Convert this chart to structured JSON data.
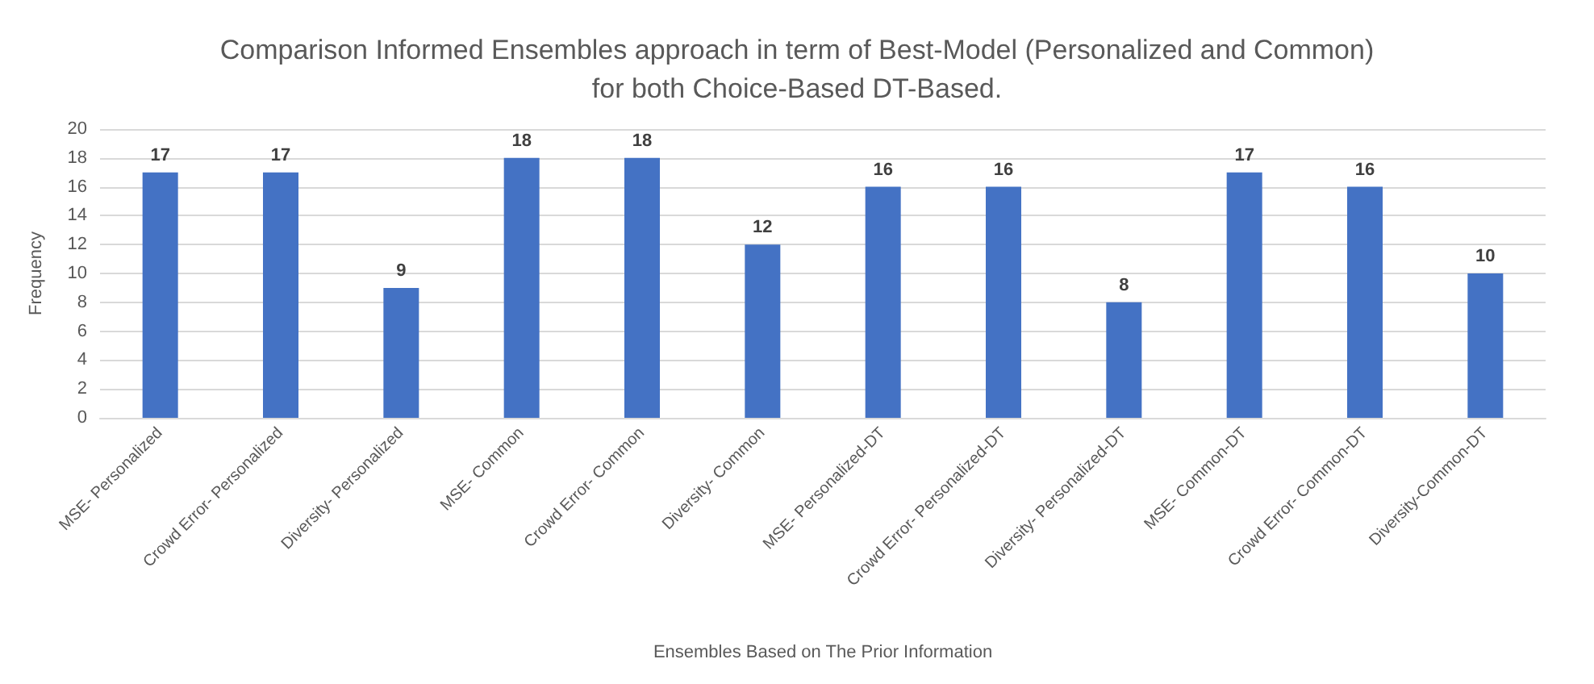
{
  "chart_data": {
    "type": "bar",
    "title": "Comparison Informed Ensembles approach in term of Best-Model (Personalized and Common)\nfor both Choice-Based DT-Based.",
    "xlabel": "Ensembles Based on The Prior Information",
    "ylabel": "Frequency",
    "categories": [
      "MSE- Personalized",
      "Crowd Error- Personalized",
      "Diversity- Personalized",
      "MSE- Common",
      "Crowd Error- Common",
      "Diversity- Common",
      "MSE- Personalized-DT",
      "Crowd Error- Personalized-DT",
      "Diversity- Personalized-DT",
      "MSE- Common-DT",
      "Crowd Error- Common-DT",
      "Diversity-Common-DT"
    ],
    "values": [
      17,
      17,
      9,
      18,
      18,
      12,
      16,
      16,
      8,
      17,
      16,
      10
    ],
    "color": "#4472c4",
    "ylim": [
      0,
      20
    ],
    "yticks": [
      0,
      2,
      4,
      6,
      8,
      10,
      12,
      14,
      16,
      18,
      20
    ],
    "grid": "y",
    "data_labels": true
  }
}
